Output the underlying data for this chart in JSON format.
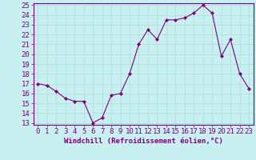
{
  "x": [
    0,
    1,
    2,
    3,
    4,
    5,
    6,
    7,
    8,
    9,
    10,
    11,
    12,
    13,
    14,
    15,
    16,
    17,
    18,
    19,
    20,
    21,
    22,
    23
  ],
  "y": [
    17.0,
    16.8,
    16.2,
    15.5,
    15.2,
    15.2,
    13.0,
    13.5,
    15.8,
    16.0,
    18.0,
    21.0,
    22.5,
    21.5,
    23.5,
    23.5,
    23.7,
    24.2,
    25.0,
    24.2,
    19.8,
    21.5,
    18.0,
    16.5
  ],
  "line_color": "#7b007b",
  "marker": "D",
  "marker_size": 2,
  "bg_color": "#c8f0f0",
  "grid_color": "#aadddd",
  "xlabel": "Windchill (Refroidissement éolien,°C)",
  "xlim_min": -0.5,
  "xlim_max": 23.5,
  "ylim_min": 12.8,
  "ylim_max": 25.2,
  "yticks": [
    13,
    14,
    15,
    16,
    17,
    18,
    19,
    20,
    21,
    22,
    23,
    24,
    25
  ],
  "xticks": [
    0,
    1,
    2,
    3,
    4,
    5,
    6,
    7,
    8,
    9,
    10,
    11,
    12,
    13,
    14,
    15,
    16,
    17,
    18,
    19,
    20,
    21,
    22,
    23
  ],
  "xlabel_fontsize": 6.5,
  "tick_fontsize": 6.5,
  "label_color": "#7b007b",
  "tick_color": "#7b007b",
  "spine_color": "#7b007b",
  "linewidth": 0.8
}
